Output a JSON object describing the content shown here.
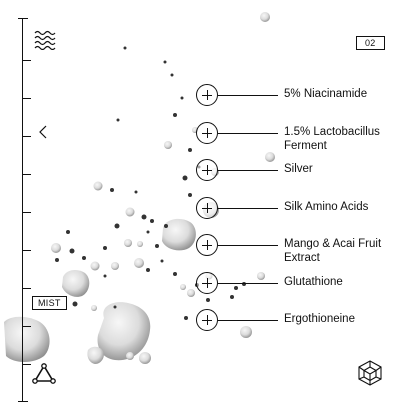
{
  "page_number": "02",
  "mist_label": "MIST",
  "colors": {
    "ink": "#111111",
    "background": "#ffffff",
    "droplet": "#d9d9d9"
  },
  "icons": {
    "wave": "wave-lines-icon",
    "back": "chevron-left-icon",
    "triangle": "triangle-nodes-icon",
    "cube": "isometric-cube-icon"
  },
  "ingredients": [
    {
      "label": "5% Niacinamide"
    },
    {
      "label": "1.5% Lactobacillus Ferment"
    },
    {
      "label": "Silver"
    },
    {
      "label": "Silk Amino Acids"
    },
    {
      "label": "Mango & Acai Fruit Extract"
    },
    {
      "label": "Glutathione"
    },
    {
      "label": "Ergothioneine"
    }
  ]
}
